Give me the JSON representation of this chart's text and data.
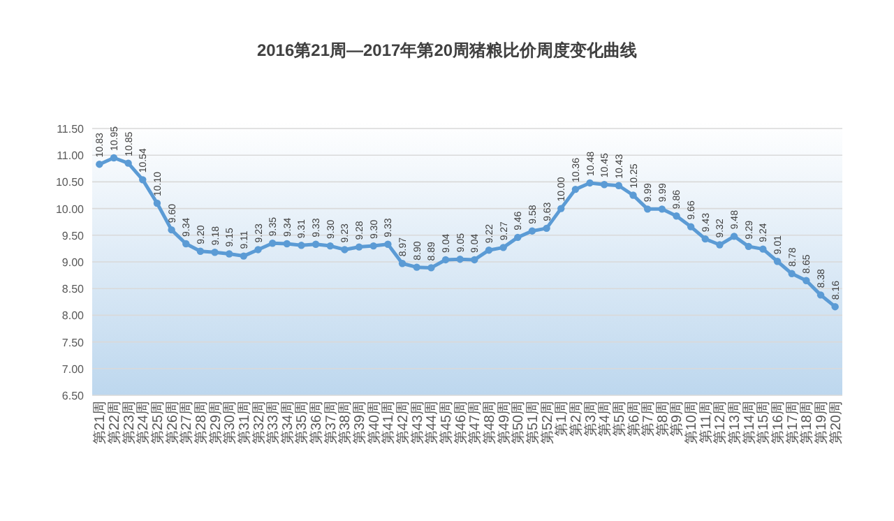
{
  "chart_data": {
    "type": "line",
    "title": "2016第21周—2017年第20周猪粮比价周度变化曲线",
    "categories": [
      "第21周",
      "第22周",
      "第23周",
      "第24周",
      "第25周",
      "第26周",
      "第27周",
      "第28周",
      "第29周",
      "第30周",
      "第31周",
      "第32周",
      "第33周",
      "第34周",
      "第35周",
      "第36周",
      "第37周",
      "第38周",
      "第39周",
      "第40周",
      "第41周",
      "第42周",
      "第43周",
      "第44周",
      "第45周",
      "第46周",
      "第47周",
      "第48周",
      "第49周",
      "第50周",
      "第51周",
      "第52周",
      "第1周",
      "第2周",
      "第3周",
      "第4周",
      "第5周",
      "第6周",
      "第7周",
      "第8周",
      "第9周",
      "第10周",
      "第11周",
      "第12周",
      "第13周",
      "第14周",
      "第15周",
      "第16周",
      "第17周",
      "第18周",
      "第19周",
      "第20周"
    ],
    "series": [
      {
        "color": "#5b9bd5",
        "values": [
          10.83,
          10.95,
          10.85,
          10.54,
          10.1,
          9.6,
          9.34,
          9.2,
          9.18,
          9.15,
          9.11,
          9.23,
          9.35,
          9.34,
          9.31,
          9.33,
          9.3,
          9.23,
          9.28,
          9.3,
          9.33,
          8.97,
          8.9,
          8.89,
          9.04,
          9.05,
          9.04,
          9.22,
          9.27,
          9.46,
          9.58,
          9.63,
          10.0,
          10.36,
          10.48,
          10.45,
          10.43,
          10.25,
          9.99,
          9.99,
          9.86,
          9.66,
          9.43,
          9.32,
          9.48,
          9.29,
          9.24,
          9.01,
          8.78,
          8.65,
          8.38,
          8.16
        ]
      }
    ],
    "value_labels": [
      "10.83",
      "10.95",
      "10.85",
      "10.54",
      "10.10",
      "9.60",
      "9.34",
      "9.20",
      "9.18",
      "9.15",
      "9.11",
      "9.23",
      "9.35",
      "9.34",
      "9.31",
      "9.33",
      "9.30",
      "9.23",
      "9.28",
      "9.30",
      "9.33",
      "8.97",
      "8.90",
      "8.89",
      "9.04",
      "9.05",
      "9.04",
      "9.22",
      "9.27",
      "9.46",
      "9.58",
      "9.63",
      "10.00",
      "10.36",
      "10.48",
      "10.45",
      "10.43",
      "10.25",
      "9.99",
      "9.99",
      "9.86",
      "9.66",
      "9.43",
      "9.32",
      "9.48",
      "9.29",
      "9.24",
      "9.01",
      "8.78",
      "8.65",
      "8.38",
      "8.16"
    ],
    "ylim": [
      6.5,
      11.5
    ],
    "yticks": [
      {
        "value": 6.5,
        "label": "6.50"
      },
      {
        "value": 7,
        "label": "7.00"
      },
      {
        "value": 7.5,
        "label": "7.50"
      },
      {
        "value": 8,
        "label": "8.00"
      },
      {
        "value": 8.5,
        "label": "8.50"
      },
      {
        "value": 9,
        "label": "9.00"
      },
      {
        "value": 9.5,
        "label": "9.50"
      },
      {
        "value": 10,
        "label": "10.00"
      },
      {
        "value": 10.5,
        "label": "10.50"
      },
      {
        "value": 11,
        "label": "11.00"
      },
      {
        "value": 11.5,
        "label": "11.50"
      }
    ],
    "grid": "y",
    "marker": "circle",
    "line_style": "solid"
  }
}
